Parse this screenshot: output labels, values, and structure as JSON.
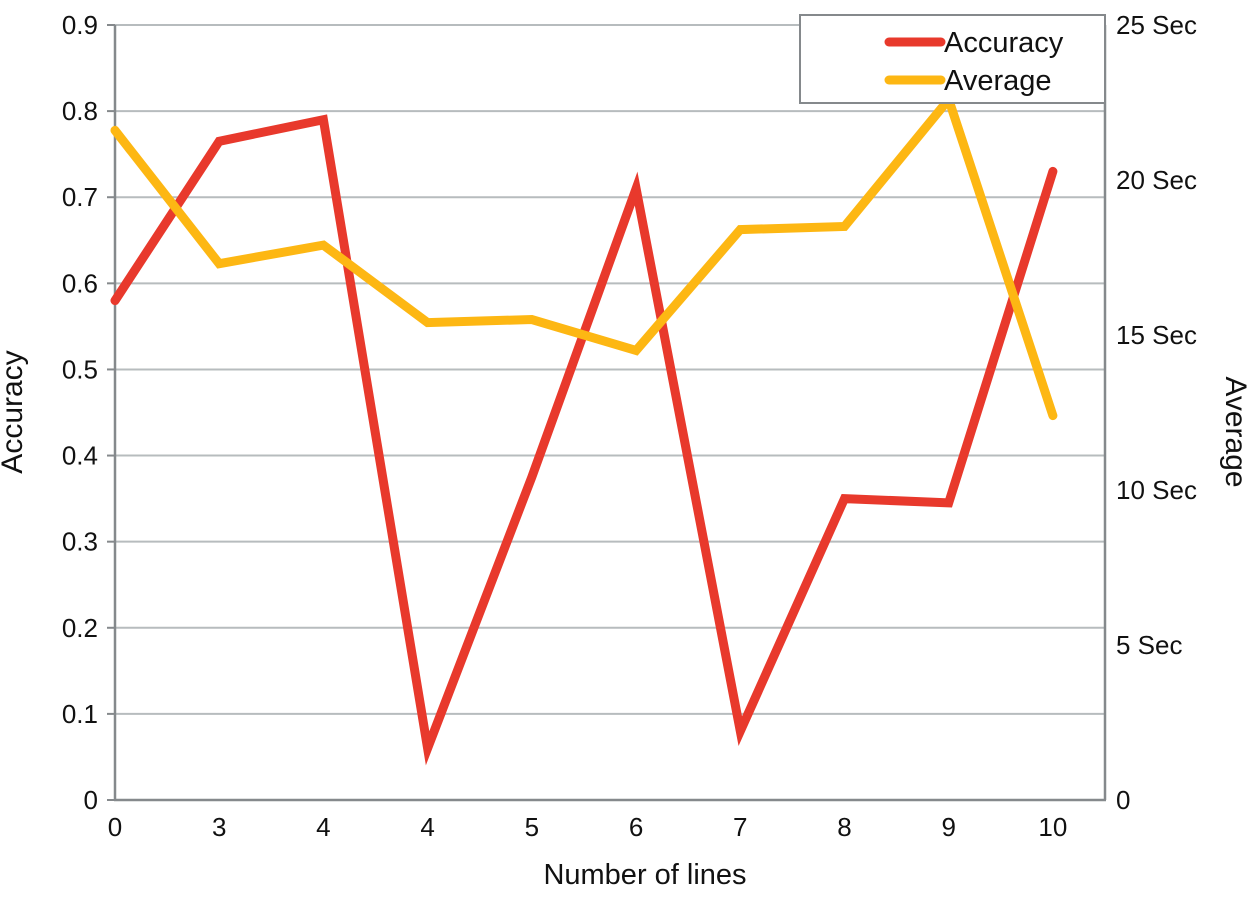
{
  "figure": {
    "background": "#ffffff"
  },
  "chart_data": {
    "type": "line",
    "title": "",
    "xlabel": "Number of lines",
    "x_categories": [
      "0",
      "3",
      "4",
      "4",
      "5",
      "6",
      "7",
      "8",
      "9",
      "10"
    ],
    "left_axis": {
      "label": "Accuracy",
      "min": 0,
      "max": 0.9,
      "tick_step": 0.1,
      "tick_labels": [
        "0.9",
        "0.8",
        "0.7",
        "0.6",
        "0.5",
        "0.4",
        "0.3",
        "0.2",
        "0.1",
        "0"
      ],
      "tick_values": [
        0.9,
        0.8,
        0.7,
        0.6,
        0.5,
        0.4,
        0.3,
        0.2,
        0.1,
        0
      ]
    },
    "right_axis": {
      "label": "Average",
      "min": 0,
      "max": 25,
      "tick_step": 5,
      "tick_labels": [
        "25 Sec",
        "20 Sec",
        "15 Sec",
        "10 Sec",
        "5  Sec",
        "0"
      ],
      "tick_values": [
        25,
        20,
        15,
        10,
        5,
        0
      ]
    },
    "series": [
      {
        "name": "Accuracy",
        "axis": "left",
        "color": "#e8392c",
        "values": [
          0.58,
          0.765,
          0.79,
          0.06,
          0.375,
          0.71,
          0.08,
          0.35,
          0.345,
          0.73
        ]
      },
      {
        "name": "Average",
        "axis": "right",
        "color": "#fdb713",
        "values": [
          21.6,
          17.3,
          17.9,
          15.4,
          15.5,
          14.5,
          18.4,
          18.5,
          22.6,
          12.4
        ]
      }
    ],
    "legend": {
      "position": "top-right",
      "entries": [
        {
          "label": "Accuracy",
          "color": "#e8392c"
        },
        {
          "label": "Average",
          "color": "#fdb713"
        }
      ]
    },
    "grid": "horizontal",
    "colors": {
      "gridline": "#b7bcbe",
      "axis": "#85898c",
      "text": "#111111"
    }
  }
}
